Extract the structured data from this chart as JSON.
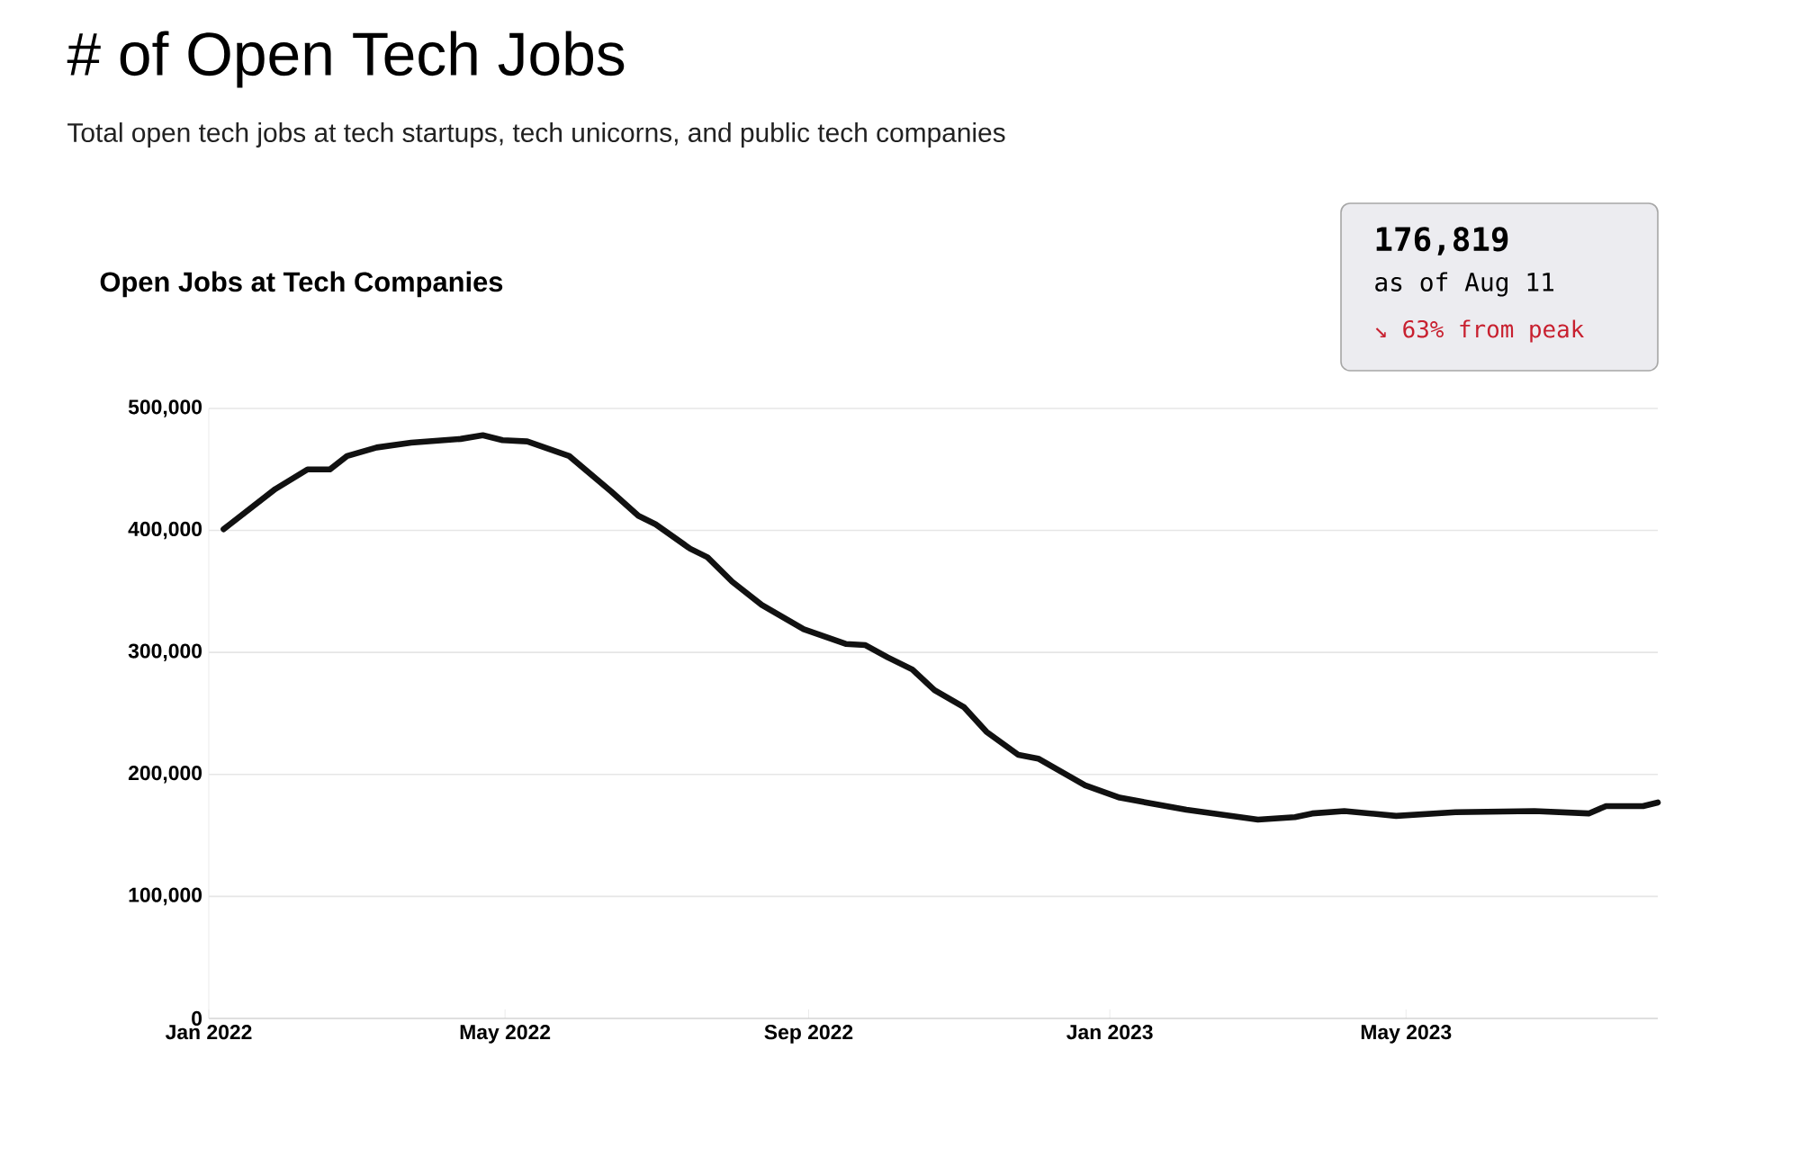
{
  "chart_data": {
    "type": "line",
    "title": "# of Open Tech Jobs",
    "subtitle": "Total open tech jobs at tech startups, tech unicorns, and public tech companies",
    "annotations": [
      "Open Jobs at Tech Companies",
      "176,819",
      "as of Aug 11",
      "↘ 63% from peak"
    ],
    "x": [
      "2022-01-07",
      "2022-01-28",
      "2022-02-10",
      "2022-02-19",
      "2022-02-26",
      "2022-03-10",
      "2022-03-24",
      "2022-04-13",
      "2022-04-22",
      "2022-04-30",
      "2022-05-10",
      "2022-05-27",
      "2022-06-13",
      "2022-06-24",
      "2022-07-01",
      "2022-07-15",
      "2022-07-22",
      "2022-08-01",
      "2022-08-13",
      "2022-08-30",
      "2022-09-16",
      "2022-09-24",
      "2022-10-03",
      "2022-10-13",
      "2022-10-22",
      "2022-11-03",
      "2022-11-12",
      "2022-11-25",
      "2022-12-03",
      "2022-12-22",
      "2023-01-05",
      "2023-02-01",
      "2023-03-02",
      "2023-03-17",
      "2023-03-24",
      "2023-04-06",
      "2023-04-27",
      "2023-05-21",
      "2023-06-22",
      "2023-07-14",
      "2023-07-21",
      "2023-08-05",
      "2023-08-11"
    ],
    "values": [
      401000,
      434000,
      450000,
      450000,
      461000,
      468000,
      472000,
      475000,
      478000,
      474000,
      473000,
      461000,
      432000,
      412000,
      405000,
      385000,
      378000,
      358000,
      339000,
      319000,
      307000,
      306000,
      296000,
      286000,
      269000,
      255000,
      235000,
      216000,
      213000,
      191000,
      181000,
      171000,
      163000,
      165000,
      168000,
      170000,
      166000,
      169000,
      170000,
      168000,
      174000,
      174000,
      177000
    ],
    "color": "#111111",
    "xlim": [
      "2022-01-01",
      "2023-08-11"
    ],
    "xticks": [
      {
        "value": "2022-01-01",
        "label": "Jan 2022"
      },
      {
        "value": "2022-05-01",
        "label": "May 2022"
      },
      {
        "value": "2022-09-01",
        "label": "Sep 2022"
      },
      {
        "value": "2023-01-01",
        "label": "Jan 2023"
      },
      {
        "value": "2023-05-01",
        "label": "May 2023"
      }
    ],
    "ylim": [
      0,
      500000
    ],
    "yticks": [
      {
        "value": 0,
        "label": "0"
      },
      {
        "value": 100000,
        "label": "100,000"
      },
      {
        "value": 200000,
        "label": "200,000"
      },
      {
        "value": 300000,
        "label": "300,000"
      },
      {
        "value": 400000,
        "label": "400,000"
      },
      {
        "value": 500000,
        "label": "500,000"
      }
    ],
    "grid": "y"
  }
}
